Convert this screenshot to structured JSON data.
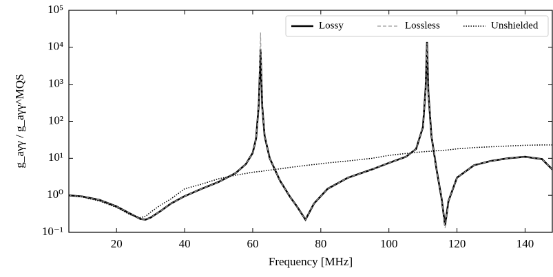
{
  "chart_data": {
    "type": "line",
    "xlabel": "Frequency [MHz]",
    "ylabel": "g_aγγ / g_aγγ^MQS",
    "log_y": true,
    "legend": "upper right",
    "x": [
      6,
      10,
      15,
      20,
      24,
      27,
      28.5,
      30,
      33,
      36,
      40,
      45,
      50,
      55,
      58,
      60,
      61,
      61.8,
      62.3,
      62.8,
      63.5,
      65,
      68,
      71,
      73,
      75.5,
      78,
      82,
      88,
      95,
      100,
      105,
      108,
      110,
      110.8,
      111.2,
      111.6,
      112.5,
      114,
      115.5,
      116.5,
      117.5,
      120,
      125,
      130,
      135,
      140,
      145,
      148
    ],
    "series": [
      {
        "name": "Lossy",
        "color": "#000000",
        "style": "solid",
        "width": 2.6,
        "values": [
          1.0,
          0.93,
          0.75,
          0.5,
          0.32,
          0.23,
          0.22,
          0.25,
          0.38,
          0.6,
          0.95,
          1.5,
          2.3,
          4,
          7,
          14,
          35,
          300,
          9000,
          250,
          40,
          10,
          2.5,
          0.9,
          0.5,
          0.22,
          0.6,
          1.5,
          3,
          5,
          7.5,
          11,
          18,
          70,
          800,
          14000,
          600,
          40,
          5,
          0.8,
          0.15,
          0.7,
          3,
          6.5,
          8.5,
          10,
          11,
          9.5,
          5
        ]
      },
      {
        "name": "Lossless",
        "color": "#999999",
        "style": "dashed",
        "width": 1.2,
        "values": [
          1.0,
          0.93,
          0.75,
          0.5,
          0.32,
          0.23,
          0.22,
          0.25,
          0.38,
          0.6,
          0.95,
          1.5,
          2.3,
          4,
          7,
          14,
          35,
          300,
          25000,
          250,
          40,
          10,
          2.5,
          0.9,
          0.5,
          0.22,
          0.6,
          1.5,
          3,
          5,
          7.5,
          11,
          18,
          70,
          800,
          13000,
          600,
          40,
          5,
          0.8,
          0.13,
          0.7,
          3,
          6.5,
          8.5,
          10,
          11,
          9.5,
          5
        ]
      },
      {
        "name": "Unshielded",
        "color": "#000000",
        "style": "dotted",
        "width": 1.5,
        "values": [
          1.0,
          0.9,
          0.7,
          0.47,
          0.3,
          0.25,
          0.27,
          0.35,
          0.55,
          0.8,
          1.5,
          2.0,
          2.8,
          3.5,
          3.9,
          4.2,
          4.3,
          4.4,
          4.4,
          4.5,
          4.6,
          4.8,
          5.2,
          5.7,
          6.0,
          6.4,
          6.8,
          7.5,
          8.5,
          10,
          12,
          13.5,
          14.5,
          15,
          15.2,
          15.3,
          15.4,
          15.6,
          16,
          16.3,
          16.6,
          16.9,
          18,
          19.5,
          20.5,
          21.5,
          22.5,
          23,
          23
        ]
      }
    ],
    "xlim": [
      6,
      148
    ],
    "xticks": [
      20,
      40,
      60,
      80,
      100,
      120,
      140
    ],
    "ylim": [
      0.1,
      100000
    ],
    "yticks": [
      {
        "value": 0.1,
        "label": "10⁻¹"
      },
      {
        "value": 1,
        "label": "10⁰"
      },
      {
        "value": 10,
        "label": "10¹"
      },
      {
        "value": 100,
        "label": "10²"
      },
      {
        "value": 1000,
        "label": "10³"
      },
      {
        "value": 10000,
        "label": "10⁴"
      },
      {
        "value": 100000,
        "label": "10⁵"
      }
    ]
  }
}
